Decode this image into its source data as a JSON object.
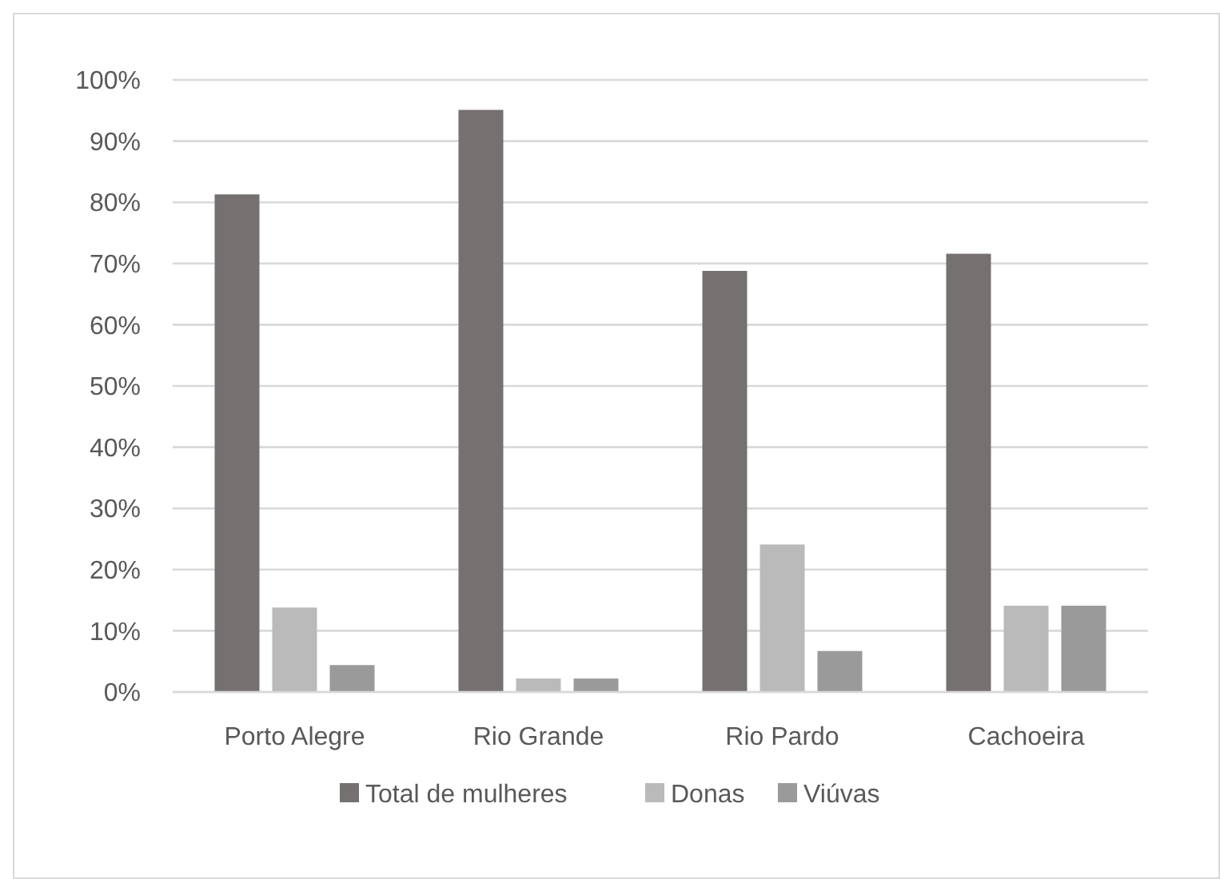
{
  "chart_data": {
    "type": "bar",
    "categories": [
      "Porto Alegre",
      "Rio Grande",
      "Rio Pardo",
      "Cachoeira"
    ],
    "series": [
      {
        "name": "Total de mulheres",
        "color": "#767171",
        "values": [
          81.3,
          95.1,
          68.8,
          71.6
        ]
      },
      {
        "name": "Donas",
        "color": "#bababa",
        "values": [
          13.8,
          2.2,
          24.1,
          14.1
        ]
      },
      {
        "name": "Viúvas",
        "color": "#9a9a9a",
        "values": [
          4.4,
          2.2,
          6.7,
          14.1
        ]
      }
    ],
    "ylim": [
      0,
      100
    ],
    "yticks": [
      {
        "value": 0,
        "label": "0%"
      },
      {
        "value": 10,
        "label": "10%"
      },
      {
        "value": 20,
        "label": "20%"
      },
      {
        "value": 30,
        "label": "30%"
      },
      {
        "value": 40,
        "label": "40%"
      },
      {
        "value": 50,
        "label": "50%"
      },
      {
        "value": 60,
        "label": "60%"
      },
      {
        "value": 70,
        "label": "70%"
      },
      {
        "value": 80,
        "label": "80%"
      },
      {
        "value": 90,
        "label": "90%"
      },
      {
        "value": 100,
        "label": "100%"
      }
    ],
    "grid": "y",
    "legend": "bottom"
  }
}
